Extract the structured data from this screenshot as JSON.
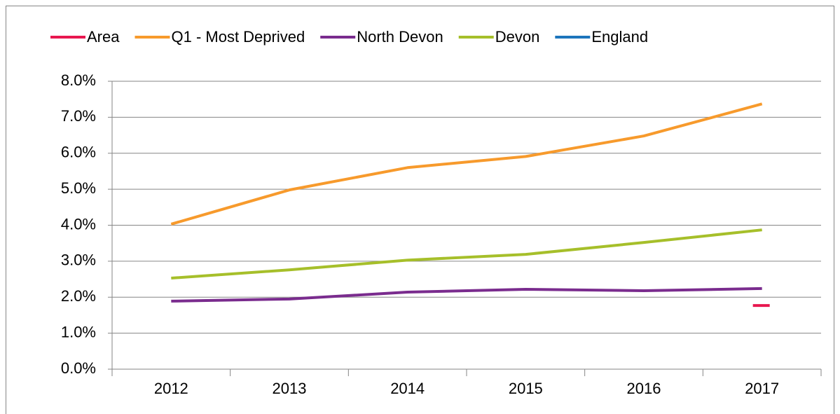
{
  "chart_data": {
    "type": "line",
    "categories": [
      "2012",
      "2013",
      "2014",
      "2015",
      "2016",
      "2017"
    ],
    "series": [
      {
        "name": "Area",
        "color": "#e8174f",
        "values": [
          null,
          null,
          null,
          null,
          null,
          1.77
        ]
      },
      {
        "name": "Q1 - Most Deprived",
        "color": "#f79a2c",
        "values": [
          4.03,
          4.98,
          5.6,
          5.91,
          6.48,
          7.37
        ]
      },
      {
        "name": "North Devon",
        "color": "#7a2c8e",
        "values": [
          1.89,
          1.95,
          2.14,
          2.22,
          2.18,
          2.24
        ]
      },
      {
        "name": "Devon",
        "color": "#a6bf2a",
        "values": [
          2.53,
          2.76,
          3.03,
          3.19,
          3.52,
          3.87
        ]
      },
      {
        "name": "England",
        "color": "#1d75bc",
        "values": [
          null,
          null,
          null,
          null,
          null,
          null
        ]
      }
    ],
    "ylim": [
      0,
      8
    ],
    "yticks": [
      {
        "value": 0,
        "label": "0.0%"
      },
      {
        "value": 1,
        "label": "1.0%"
      },
      {
        "value": 2,
        "label": "2.0%"
      },
      {
        "value": 3,
        "label": "3.0%"
      },
      {
        "value": 4,
        "label": "4.0%"
      },
      {
        "value": 5,
        "label": "5.0%"
      },
      {
        "value": 6,
        "label": "6.0%"
      },
      {
        "value": 7,
        "label": "7.0%"
      },
      {
        "value": 8,
        "label": "8.0%"
      }
    ],
    "grid": true,
    "legend": "top"
  }
}
